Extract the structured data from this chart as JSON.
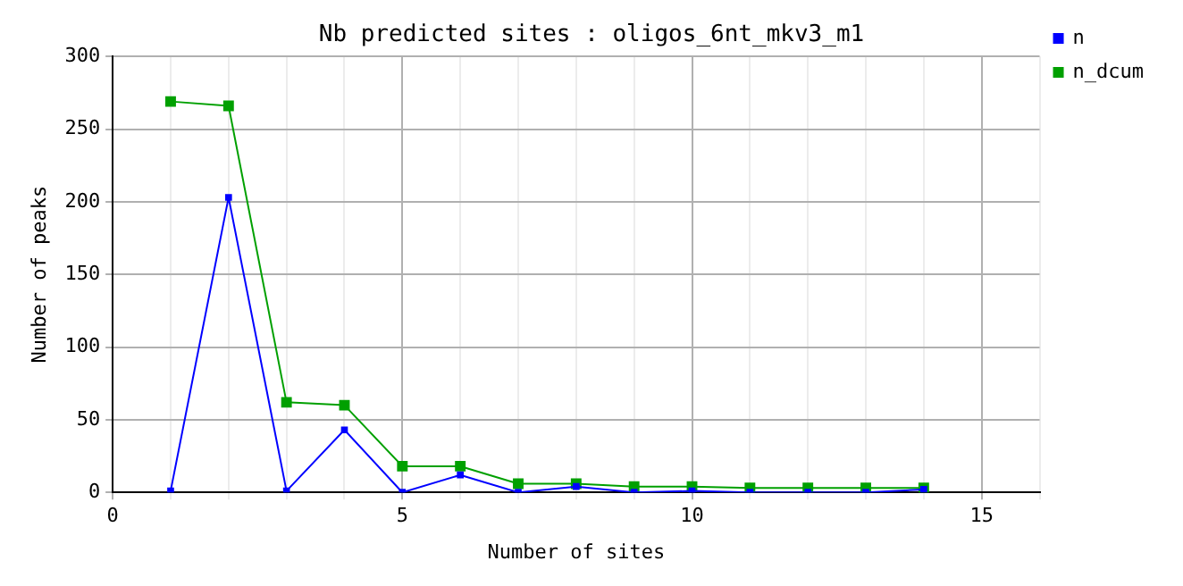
{
  "chart_data": {
    "type": "line",
    "title": "Nb predicted sites : oligos_6nt_mkv3_m1",
    "xlabel": "Number of sites",
    "ylabel": "Number of peaks",
    "x": [
      1,
      2,
      3,
      4,
      5,
      6,
      7,
      8,
      9,
      10,
      11,
      12,
      13,
      14
    ],
    "series": [
      {
        "name": "n",
        "color": "#0000ff",
        "values": [
          1,
          203,
          1,
          43,
          0,
          12,
          0,
          4,
          0,
          1,
          0,
          0,
          0,
          2
        ]
      },
      {
        "name": "n_dcum",
        "color": "#00a000",
        "values": [
          269,
          266,
          62,
          60,
          18,
          18,
          6,
          6,
          4,
          4,
          3,
          3,
          3,
          3
        ]
      }
    ],
    "xlim": [
      0,
      16
    ],
    "xticks": [
      0,
      {
        "value": 1,
        "label": null
      },
      {
        "value": 2,
        "label": null
      },
      {
        "value": 3,
        "label": null
      },
      {
        "value": 4,
        "label": null
      },
      5,
      {
        "value": 6,
        "label": null
      },
      {
        "value": 7,
        "label": null
      },
      {
        "value": 8,
        "label": null
      },
      {
        "value": 9,
        "label": null
      },
      10,
      {
        "value": 11,
        "label": null
      },
      {
        "value": 12,
        "label": null
      },
      {
        "value": 13,
        "label": null
      },
      {
        "value": 14,
        "label": null
      },
      15,
      {
        "value": 16,
        "label": null
      }
    ],
    "ylim": [
      0,
      300
    ],
    "yticks": [
      0,
      50,
      100,
      150,
      200,
      250,
      300
    ],
    "grid": true,
    "legend": "top right",
    "marker": "square",
    "line_style": "solid"
  }
}
